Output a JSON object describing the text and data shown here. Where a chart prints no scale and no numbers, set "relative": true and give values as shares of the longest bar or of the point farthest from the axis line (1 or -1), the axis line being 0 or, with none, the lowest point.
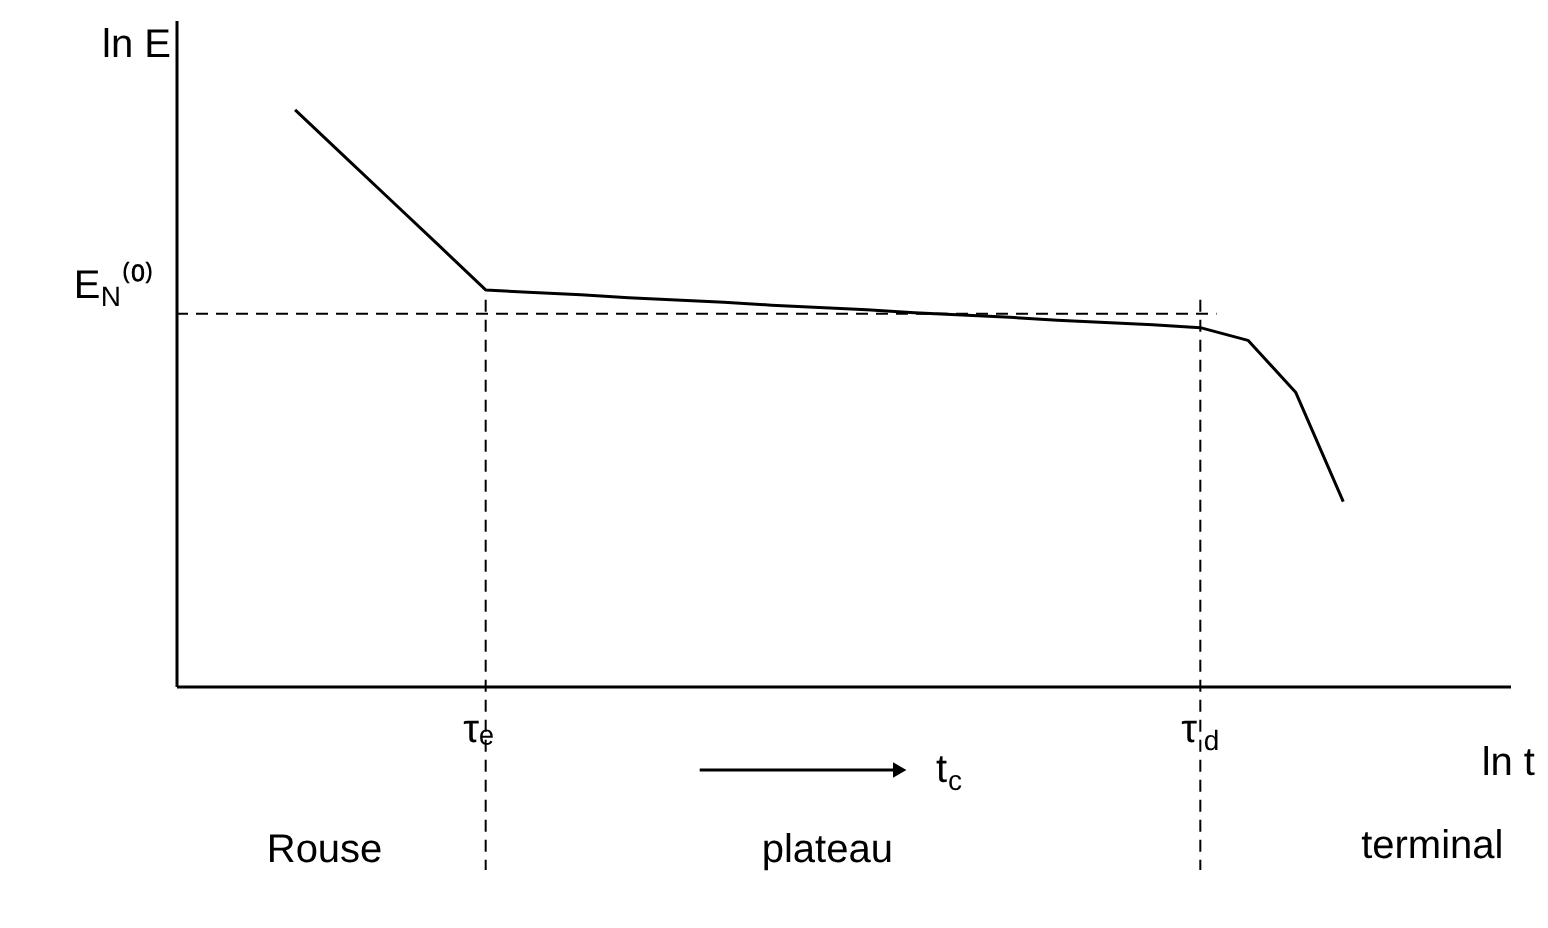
{
  "chart_data": {
    "type": "line",
    "relative": true,
    "xlabel": "ln t",
    "ylabel": "ln E",
    "categories": [
      null,
      null,
      null,
      null,
      null,
      null,
      "τₑ",
      null,
      null,
      null,
      null,
      null,
      null,
      null,
      null,
      null,
      null,
      null,
      null,
      null,
      null,
      "τ$_{d}$",
      null,
      null,
      null,
      null,
      null,
      null
    ],
    "series": [
      {
        "color": "#000000",
        "values": [
          null,
          null,
          1.0,
          0.922,
          0.844,
          0.766,
          0.6875,
          0.683,
          0.679,
          0.674,
          0.67,
          0.666,
          0.661,
          0.657,
          0.653,
          0.648,
          0.644,
          0.64,
          0.635,
          0.631,
          0.627,
          0.622,
          0.6,
          0.51,
          0.32,
          null,
          null,
          null
        ]
      }
    ],
    "ref_lines": [
      {
        "axis": "y",
        "value": 0.646,
        "label": "E$_{N}$⁽⁰⁾",
        "line_style": "dashed"
      },
      {
        "axis": "x",
        "value": "τₑ",
        "line_style": "dashed"
      },
      {
        "axis": "x",
        "value": "τ$_{d}$",
        "line_style": "dashed"
      }
    ],
    "annotations": [
      "t$_{c}$",
      "Rouse",
      "plateau",
      "terminal"
    ],
    "grid": false,
    "legend": false,
    "marker": "none",
    "line_style": "solid"
  }
}
